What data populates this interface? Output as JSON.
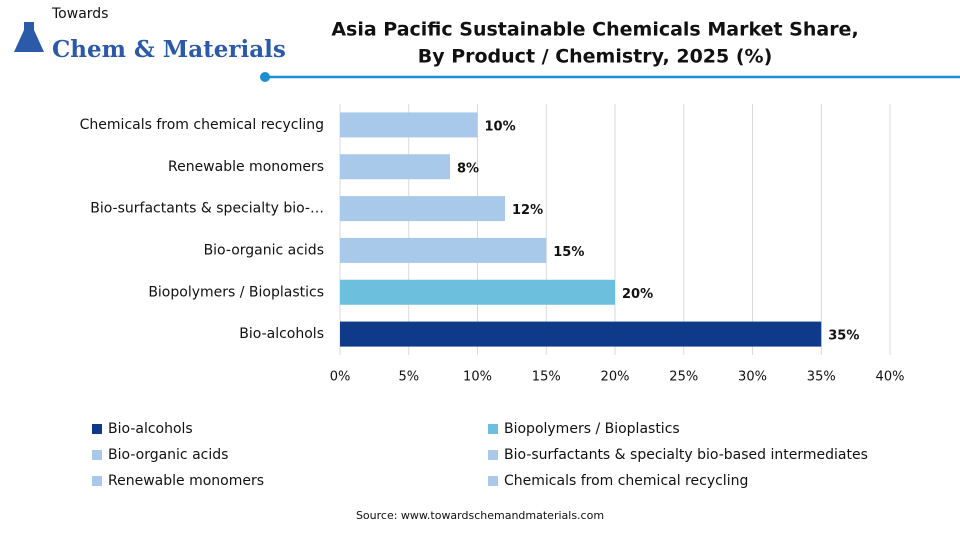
{
  "header": {
    "logo_top": "Towards",
    "logo_main": "Chem & Materials"
  },
  "chart_data": {
    "type": "bar",
    "orientation": "horizontal",
    "title": [
      "Asia Pacific Sustainable Chemicals Market Share,",
      "By Product / Chemistry, 2025 (%)"
    ],
    "categories": [
      "Bio-alcohols",
      "Biopolymers / Bioplastics",
      "Bio-organic acids",
      "Bio-surfactants & specialty bio-…",
      "Renewable monomers",
      "Chemicals from chemical recycling"
    ],
    "values": [
      35,
      20,
      15,
      12,
      8,
      10
    ],
    "value_labels": [
      "35%",
      "20%",
      "15%",
      "12%",
      "8%",
      "10%"
    ],
    "colors": [
      "#0f3a8a",
      "#6cbfdd",
      "#a9c9ea",
      "#a9c9ea",
      "#a9c9ea",
      "#a9c9ea"
    ],
    "legend": [
      {
        "name": "Bio-alcohols",
        "color": "#0f3a8a"
      },
      {
        "name": "Biopolymers / Bioplastics",
        "color": "#6cbfdd"
      },
      {
        "name": "Bio-organic acids",
        "color": "#a9c9ea"
      },
      {
        "name": "Bio-surfactants & specialty bio-based intermediates",
        "color": "#a9c9ea"
      },
      {
        "name": "Renewable monomers",
        "color": "#a9c9ea"
      },
      {
        "name": "Chemicals from chemical recycling",
        "color": "#a9c9ea"
      }
    ],
    "xlim": [
      0,
      40
    ],
    "xticks": [
      {
        "value": 0,
        "label": "0%"
      },
      {
        "value": 5,
        "label": "5%"
      },
      {
        "value": 10,
        "label": "10%"
      },
      {
        "value": 15,
        "label": "15%"
      },
      {
        "value": 20,
        "label": "20%"
      },
      {
        "value": 25,
        "label": "25%"
      },
      {
        "value": 30,
        "label": "30%"
      },
      {
        "value": 35,
        "label": "35%"
      },
      {
        "value": 40,
        "label": "40%"
      }
    ],
    "grid": true,
    "source": "Source: www.towardschemandmaterials.com"
  }
}
